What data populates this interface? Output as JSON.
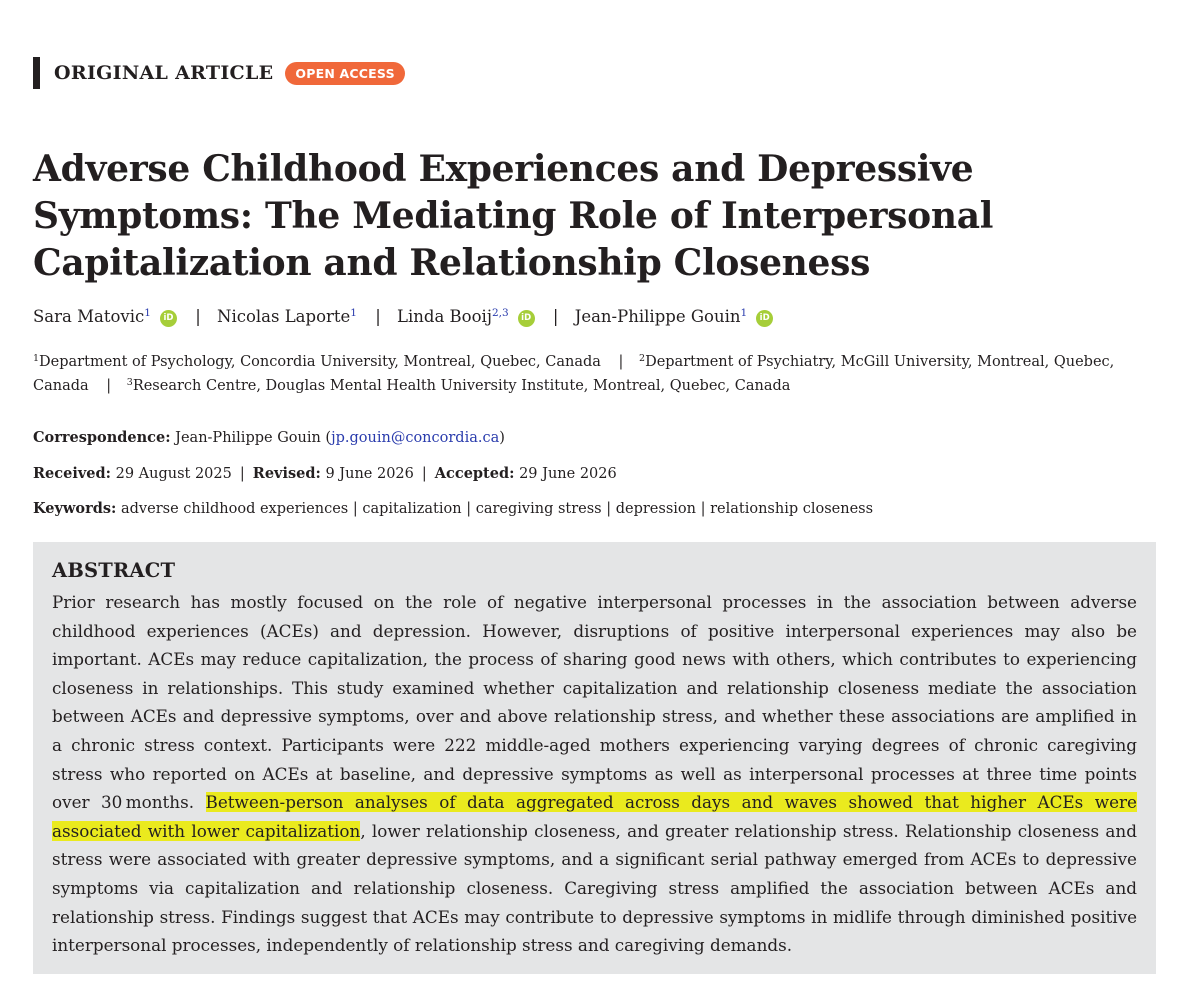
{
  "article_type": "ORIGINAL ARTICLE",
  "badge": "OPEN ACCESS",
  "title": "Adverse Childhood Experiences and Depressive Symptoms: The Mediating Role of Interpersonal Capitalization and Relationship Closeness",
  "authors": [
    {
      "name": "Sara Matovic",
      "sup": "1",
      "orcid": true
    },
    {
      "name": "Nicolas Laporte",
      "sup": "1",
      "orcid": false
    },
    {
      "name": "Linda Booij",
      "sup": "2,3",
      "orcid": true
    },
    {
      "name": "Jean-Philippe Gouin",
      "sup": "1",
      "orcid": true
    }
  ],
  "orcid_icon_text": "iD",
  "author_separator": "|",
  "affiliations": [
    {
      "num": "1",
      "text": "Department of Psychology, Concordia University, Montreal, Quebec, Canada"
    },
    {
      "num": "2",
      "text": "Department of Psychiatry, McGill University, Montreal, Quebec, Canada"
    },
    {
      "num": "3",
      "text": "Research Centre, Douglas Mental Health University Institute, Montreal, Quebec, Canada"
    }
  ],
  "correspondence": {
    "label": "Correspondence:",
    "name": "Jean-Philippe Gouin",
    "email": "jp.gouin@concordia.ca"
  },
  "dates": {
    "received_label": "Received:",
    "received": "29 August 2025",
    "revised_label": "Revised:",
    "revised": "9 June 2026",
    "accepted_label": "Accepted:",
    "accepted": "29 June 2026"
  },
  "keywords": {
    "label": "Keywords:",
    "items": [
      "adverse childhood experiences",
      "capitalization",
      "caregiving stress",
      "depression",
      "relationship closeness"
    ]
  },
  "abstract": {
    "heading": "ABSTRACT",
    "text_before": "Prior research has mostly focused on the role of negative interpersonal processes in the association between adverse childhood experiences (ACEs) and depression. However, disruptions of positive interpersonal experiences may also be important. ACEs may reduce capitalization, the process of sharing good news with others, which contributes to experiencing closeness in relationships. This study examined whether capitalization and relationship closeness mediate the association between ACEs and depressive symptoms, over and above relationship stress, and whether these associations are amplified in a chronic stress context. Participants were 222 middle-aged mothers experiencing varying degrees of chronic caregiving stress who reported on ACEs at baseline, and depressive symptoms as well as interpersonal processes at three time points over 30 months. ",
    "text_highlighted": "Between-person analyses of data aggregated across days and waves showed that higher ACEs were associated with lower capitalization",
    "text_after": ", lower relationship closeness, and greater relationship stress. Relationship closeness and stress were associated with greater depressive symptoms, and a significant serial pathway emerged from ACEs to depressive symptoms via capitalization and relationship closeness. Caregiving stress amplified the association between ACEs and relationship stress. Findings suggest that ACEs may contribute to depressive symptoms in midlife through diminished positive interpersonal processes, independently of relationship stress and caregiving demands.",
    "highlight_color": "#eaea1e"
  },
  "colors": {
    "badge": "#f0683a",
    "orcid": "#a6ce39",
    "link": "#2a3cad",
    "abstract_bg": "#e4e5e6"
  }
}
